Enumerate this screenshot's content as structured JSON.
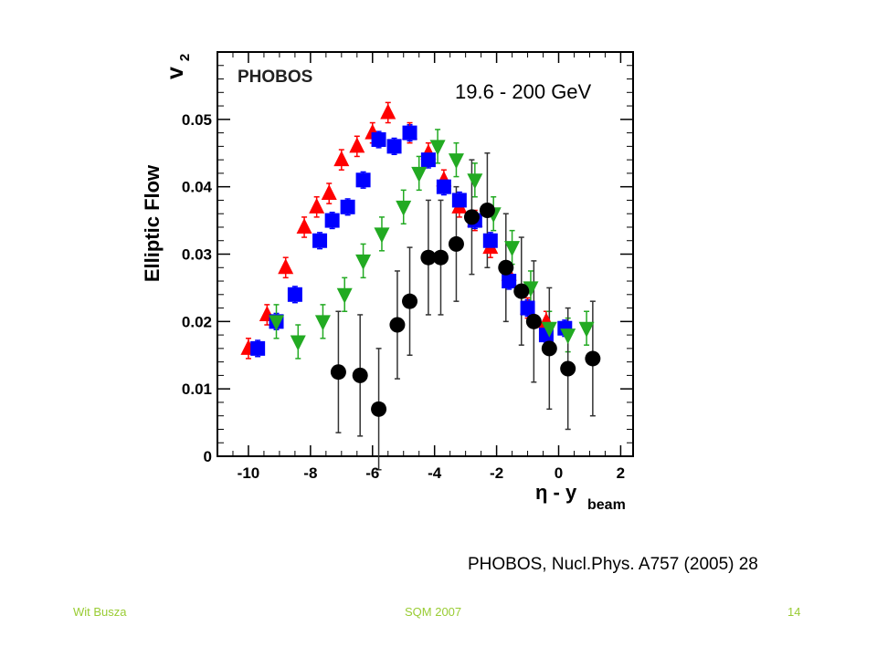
{
  "chart_data": {
    "type": "scatter",
    "title": "PHOBOS",
    "ylabel": "v",
    "ylabel_sub": "2",
    "xlabel_eta": "η - y",
    "xlabel_sub": "beam",
    "xlim": [
      -11,
      2.4
    ],
    "ylim": [
      0,
      0.06
    ],
    "xticks": [
      -10,
      -8,
      -6,
      -4,
      -2,
      0,
      2
    ],
    "xtick_labels": [
      "-10",
      "-8",
      "-6",
      "-4",
      "-2",
      "0",
      "2"
    ],
    "yticks": [
      0,
      0.01,
      0.02,
      0.03,
      0.04,
      0.05
    ],
    "ytick_labels": [
      "0",
      "0.01",
      "0.02",
      "0.03",
      "0.04",
      "0.05"
    ],
    "grid": false,
    "series": [
      {
        "marker": "triangle-up",
        "color": "#ff0000",
        "x": [
          -10.0,
          -9.4,
          -8.8,
          -8.2,
          -7.8,
          -7.4,
          -7.0,
          -6.5,
          -6.0,
          -5.5,
          -4.8,
          -4.2,
          -3.7,
          -3.2,
          -2.7,
          -2.2,
          -1.6,
          -1.0,
          -0.4
        ],
        "y": [
          0.016,
          0.021,
          0.028,
          0.034,
          0.037,
          0.039,
          0.044,
          0.046,
          0.048,
          0.051,
          0.048,
          0.045,
          0.041,
          0.037,
          0.035,
          0.031,
          0.027,
          0.022,
          0.02
        ],
        "err": [
          0.0015,
          0.0015,
          0.0015,
          0.0015,
          0.0015,
          0.0015,
          0.0015,
          0.0015,
          0.0015,
          0.0015,
          0.0015,
          0.0015,
          0.0015,
          0.0015,
          0.0015,
          0.0015,
          0.0015,
          0.0015,
          0.0015
        ]
      },
      {
        "marker": "square",
        "color": "#0000ff",
        "x": [
          -9.7,
          -9.1,
          -8.5,
          -7.7,
          -7.3,
          -6.8,
          -6.3,
          -5.8,
          -5.3,
          -4.8,
          -4.2,
          -3.7,
          -3.2,
          -2.7,
          -2.2,
          -1.6,
          -1.0,
          -0.4,
          0.2
        ],
        "y": [
          0.016,
          0.02,
          0.024,
          0.032,
          0.035,
          0.037,
          0.041,
          0.047,
          0.046,
          0.048,
          0.044,
          0.04,
          0.038,
          0.035,
          0.032,
          0.026,
          0.022,
          0.018,
          0.019
        ],
        "err": [
          0.0012,
          0.0012,
          0.0012,
          0.0012,
          0.0012,
          0.0012,
          0.0012,
          0.0012,
          0.0012,
          0.0012,
          0.0012,
          0.0012,
          0.0012,
          0.0012,
          0.0012,
          0.0012,
          0.0012,
          0.0012,
          0.0012
        ]
      },
      {
        "marker": "triangle-down",
        "color": "#22aa22",
        "x": [
          -9.1,
          -8.4,
          -7.6,
          -6.9,
          -6.3,
          -5.7,
          -5.0,
          -4.5,
          -3.9,
          -3.3,
          -2.7,
          -2.1,
          -1.5,
          -0.9,
          -0.3,
          0.3,
          0.9
        ],
        "y": [
          0.02,
          0.017,
          0.02,
          0.024,
          0.029,
          0.033,
          0.037,
          0.042,
          0.046,
          0.044,
          0.041,
          0.036,
          0.031,
          0.025,
          0.019,
          0.018,
          0.019
        ],
        "err": [
          0.0025,
          0.0025,
          0.0025,
          0.0025,
          0.0025,
          0.0025,
          0.0025,
          0.0025,
          0.0025,
          0.0025,
          0.0025,
          0.0025,
          0.0025,
          0.0025,
          0.0025,
          0.0025,
          0.0025
        ]
      },
      {
        "marker": "circle",
        "color": "#000000",
        "x": [
          -7.1,
          -6.4,
          -5.8,
          -5.2,
          -4.8,
          -4.2,
          -3.8,
          -3.3,
          -2.8,
          -2.3,
          -1.7,
          -1.2,
          -0.8,
          -0.3,
          0.3,
          1.1
        ],
        "y": [
          0.0125,
          0.012,
          0.007,
          0.0195,
          0.023,
          0.0295,
          0.0295,
          0.0315,
          0.0355,
          0.0365,
          0.028,
          0.0245,
          0.02,
          0.016,
          0.013,
          0.0145
        ],
        "err": [
          0.009,
          0.009,
          0.009,
          0.008,
          0.008,
          0.0085,
          0.0085,
          0.0085,
          0.0085,
          0.0085,
          0.008,
          0.008,
          0.009,
          0.009,
          0.009,
          0.0085
        ]
      }
    ]
  },
  "side_label": "Elliptic Flow",
  "energy_label": "19.6 - 200 GeV",
  "citation": "PHOBOS, Nucl.Phys. A757 (2005) 28",
  "footer": {
    "left": "Wit Busza",
    "center": "SQM 2007",
    "right": "14"
  }
}
